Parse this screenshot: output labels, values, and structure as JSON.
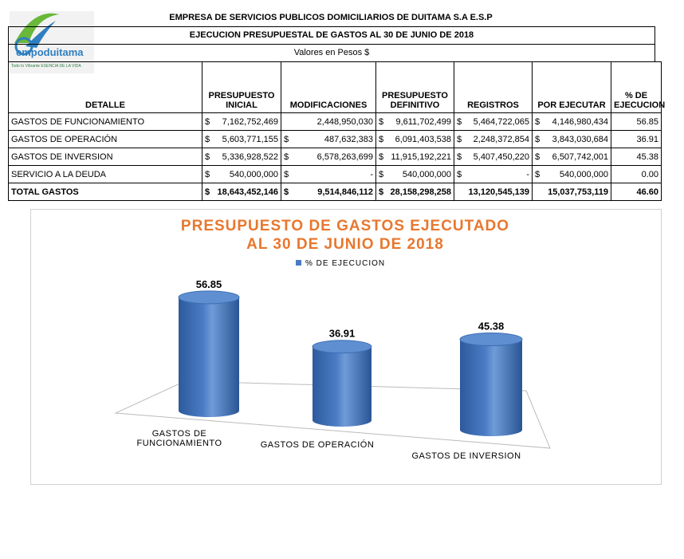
{
  "header": {
    "company": "EMPRESA DE SERVICIOS PUBLICOS DOMICILIARIOS DE DUITAMA S.A E.S.P",
    "report": "EJECUCION PRESUPUESTAL DE GASTOS AL 30 DE JUNIO DE 2018",
    "units": "Valores en Pesos $",
    "logo": "empoduitama",
    "tagline": "Todo lo Vibrante ESENCIA DE LA VIDA"
  },
  "table": {
    "columns": [
      "DETALLE",
      "PRESUPUESTO INICIAL",
      "MODIFICACIONES",
      "PRESUPUESTO DEFINITIVO",
      "REGISTROS",
      "POR EJECUTAR",
      "% DE EJECUCION"
    ],
    "rows": [
      [
        "GASTOS DE FUNCIONAMIENTO",
        {
          "symbol": "$",
          "amount": "7,162,752,469"
        },
        "2,448,950,030",
        {
          "symbol": "$",
          "amount": "9,611,702,499"
        },
        {
          "symbol": "$",
          "amount": "5,464,722,065"
        },
        {
          "symbol": "$",
          "amount": "4,146,980,434"
        },
        "56.85"
      ],
      [
        "GASTOS DE OPERACIÓN",
        {
          "symbol": "$",
          "amount": "5,603,771,155"
        },
        {
          "symbol": "$",
          "amount": "487,632,383"
        },
        {
          "symbol": "$",
          "amount": "6,091,403,538"
        },
        {
          "symbol": "$",
          "amount": "2,248,372,854"
        },
        {
          "symbol": "$",
          "amount": "3,843,030,684"
        },
        "36.91"
      ],
      [
        "GASTOS DE INVERSION",
        {
          "symbol": "$",
          "amount": "5,336,928,522"
        },
        {
          "symbol": "$",
          "amount": "6,578,263,699"
        },
        {
          "symbol": "$",
          "amount": "11,915,192,221"
        },
        {
          "symbol": "$",
          "amount": "5,407,450,220"
        },
        {
          "symbol": "$",
          "amount": "6,507,742,001"
        },
        "45.38"
      ],
      [
        "SERVICIO A LA DEUDA",
        {
          "symbol": "$",
          "amount": "540,000,000"
        },
        {
          "symbol": "$",
          "amount": "-"
        },
        {
          "symbol": "$",
          "amount": "540,000,000"
        },
        {
          "symbol": "$",
          "amount": "-"
        },
        {
          "symbol": "$",
          "amount": "540,000,000"
        },
        "0.00"
      ],
      [
        "TOTAL GASTOS",
        {
          "symbol": "$",
          "amount": "18,643,452,146"
        },
        {
          "symbol": "$",
          "amount": "9,514,846,112"
        },
        {
          "symbol": "$",
          "amount": "28,158,298,258"
        },
        "13,120,545,139",
        "15,037,753,119",
        "46.60"
      ]
    ]
  },
  "chart_data": {
    "type": "bar",
    "title": [
      "PRESUPUESTO DE GASTOS EJECUTADO",
      "AL 30 DE JUNIO DE 2018"
    ],
    "categories": [
      "GASTOS DE FUNCIONAMIENTO",
      "GASTOS DE OPERACIÓN",
      "GASTOS DE INVERSION"
    ],
    "series": [
      {
        "name": "% DE EJECUCION",
        "color": "#4a7bc4",
        "values": [
          56.85,
          36.91,
          45.38
        ]
      }
    ],
    "legend": "top"
  }
}
